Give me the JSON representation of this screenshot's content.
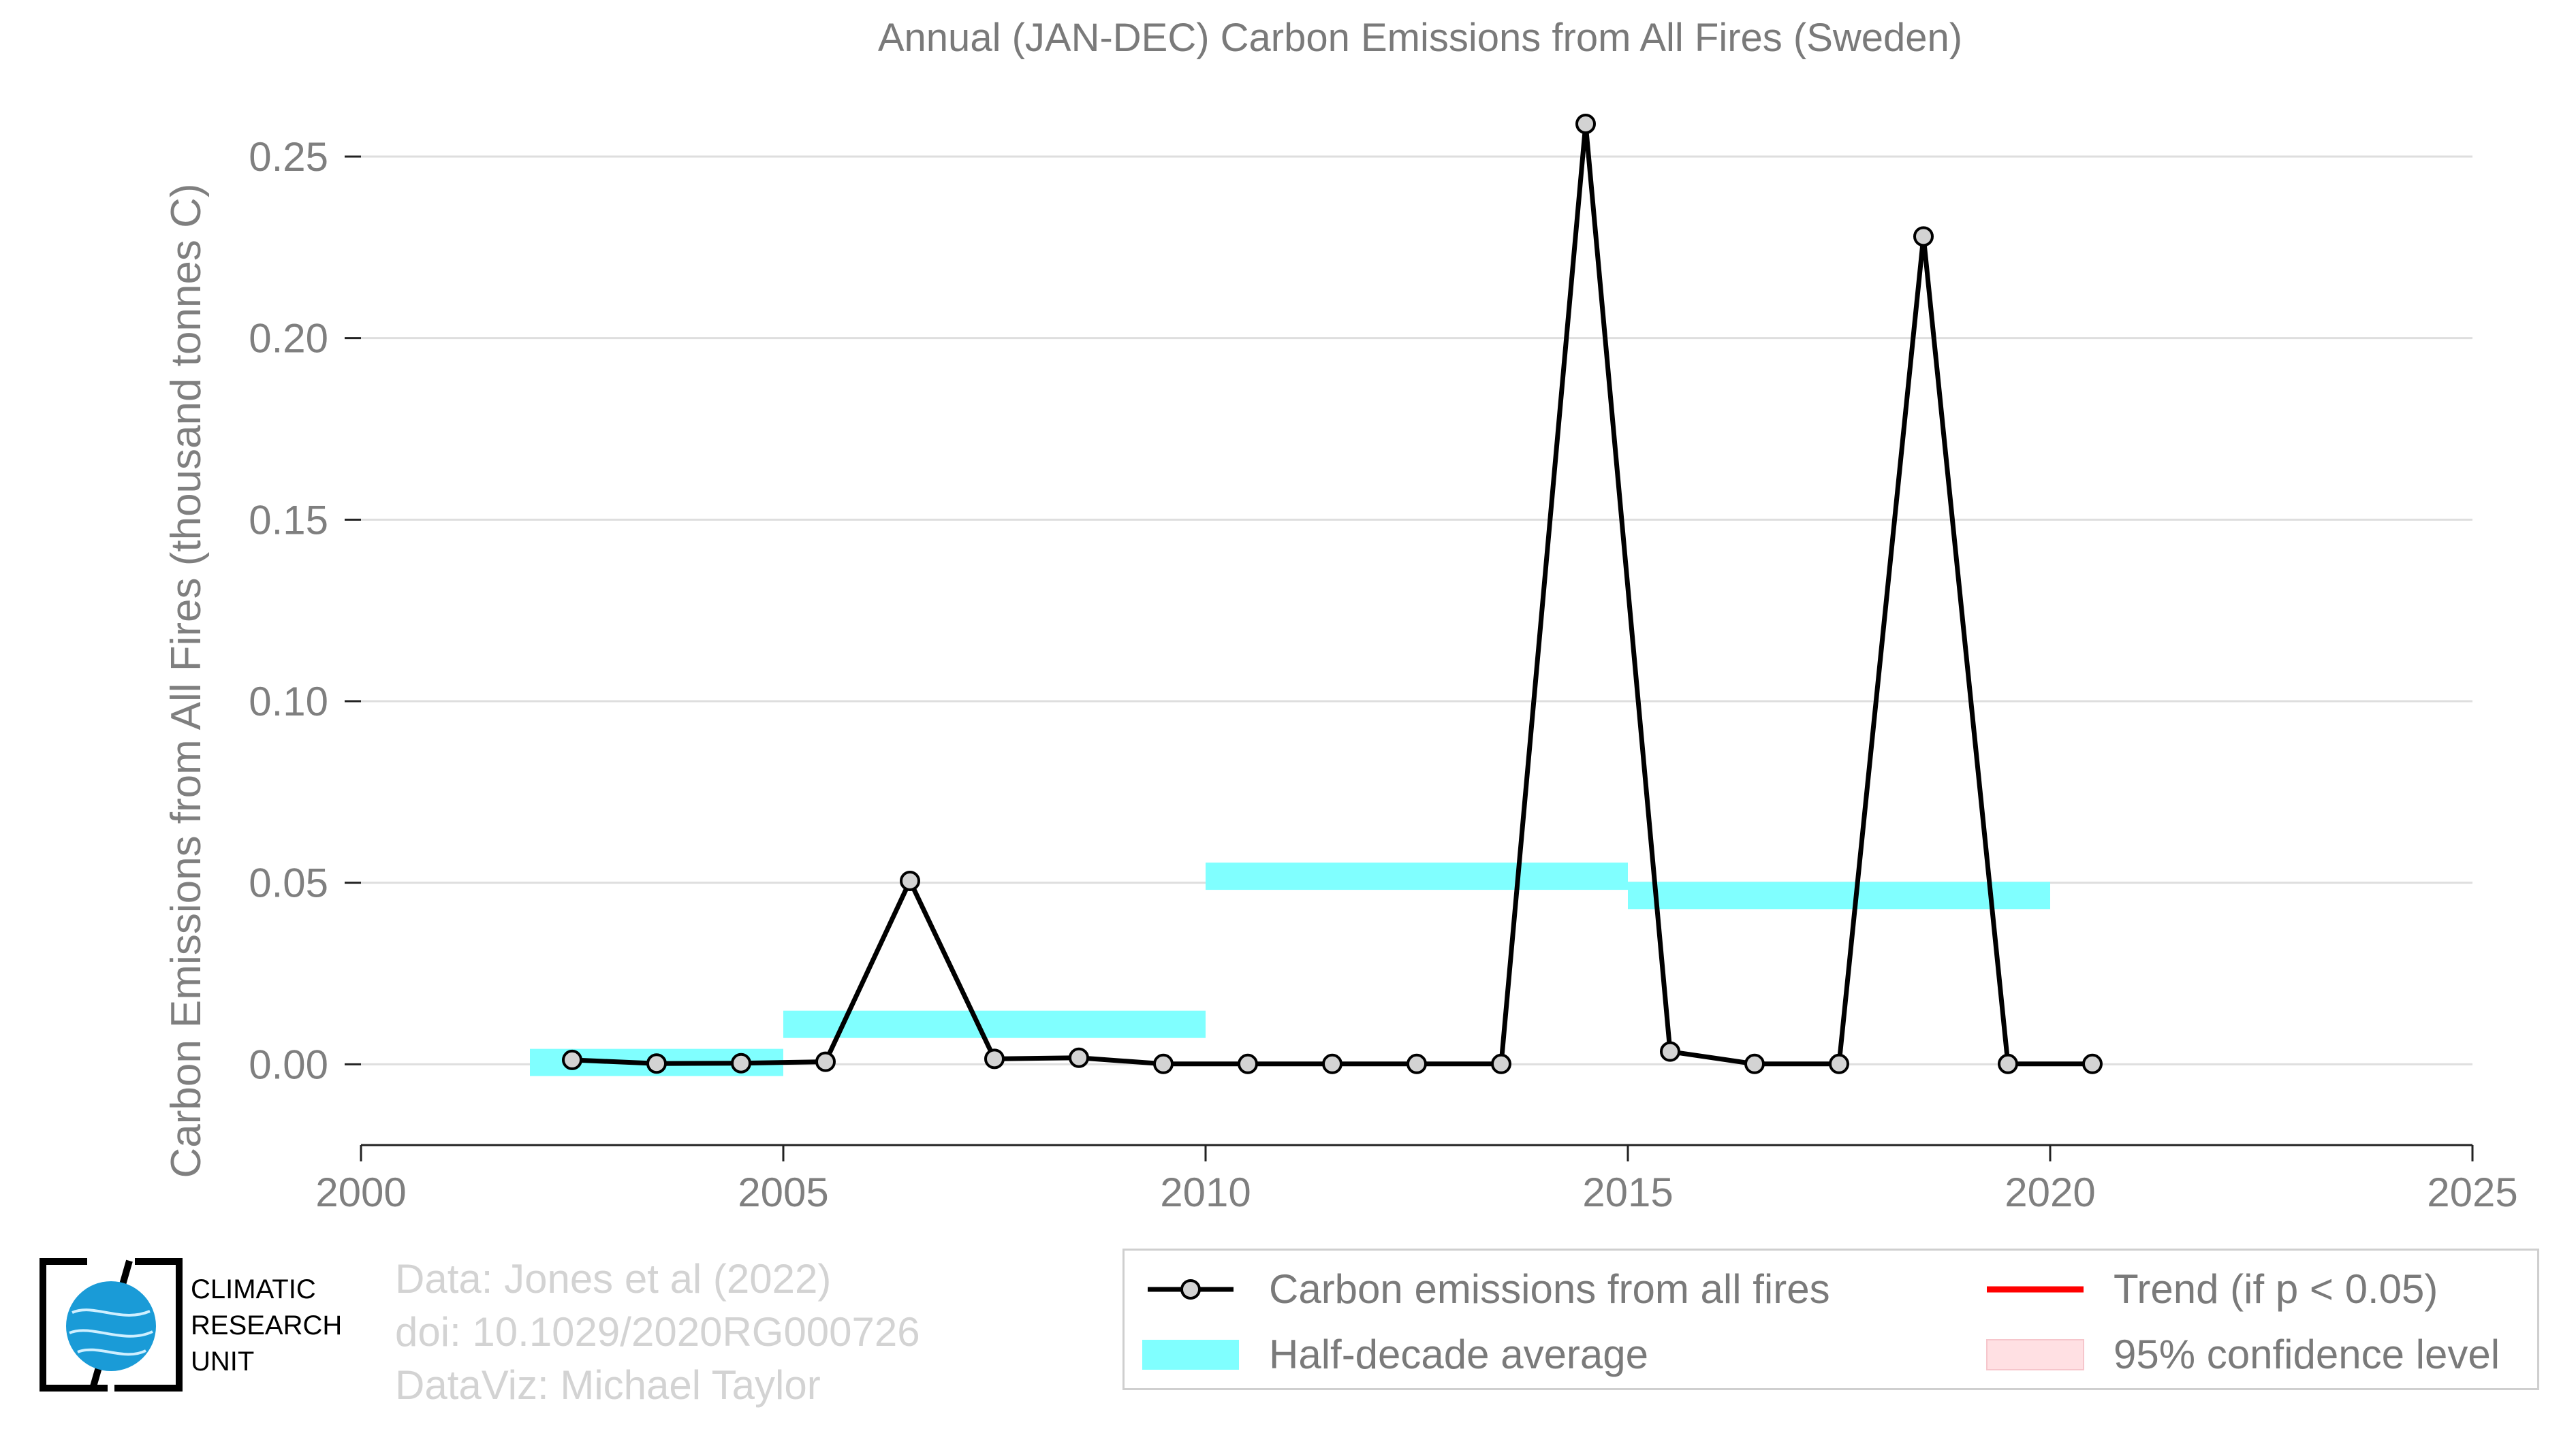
{
  "chart_data": {
    "type": "line",
    "title": "Annual (JAN-DEC) Carbon Emissions from All Fires (Sweden)",
    "xlabel": "",
    "ylabel": "Carbon Emissions from All Fires (thousand tonnes C)",
    "xlim": [
      2000,
      2025
    ],
    "ylim": [
      -0.02,
      0.265
    ],
    "x_ticks": [
      "2000",
      "2005",
      "2010",
      "2015",
      "2020",
      "2025"
    ],
    "y_ticks": [
      "0.00",
      "0.05",
      "0.10",
      "0.15",
      "0.20",
      "0.25"
    ],
    "grid": "horizontal",
    "series": [
      {
        "name": "Carbon emissions from all fires",
        "color": "#000000",
        "marker_fill": "#d3d3d3",
        "x": [
          2002.5,
          2003.5,
          2004.5,
          2005.5,
          2006.5,
          2007.5,
          2008.5,
          2009.5,
          2010.5,
          2011.5,
          2012.5,
          2013.5,
          2014.5,
          2015.5,
          2016.5,
          2017.5,
          2018.5,
          2019.5,
          2020.5
        ],
        "y": [
          0.0012,
          0.0002,
          0.0003,
          0.0007,
          0.0505,
          0.0015,
          0.0018,
          0.0001,
          0.0001,
          0.0001,
          0.0001,
          0.0001,
          0.259,
          0.0035,
          0.0001,
          0.0001,
          0.228,
          0.0001,
          0.0001
        ]
      }
    ],
    "half_decade_average": {
      "name": "Half-decade average",
      "color": "#80ffff",
      "bands": [
        {
          "x": [
            2002,
            2005
          ],
          "y": 0.0005
        },
        {
          "x": [
            2005,
            2010
          ],
          "y": 0.011
        },
        {
          "x": [
            2010,
            2015
          ],
          "y": 0.0518
        },
        {
          "x": [
            2015,
            2020
          ],
          "y": 0.0465
        }
      ]
    },
    "legend": {
      "placement": "bottom-right",
      "entries": [
        {
          "label": "Carbon emissions from all fires",
          "kind": "line-marker",
          "color": "#000000"
        },
        {
          "label": "Trend (if p < 0.05)",
          "kind": "line",
          "color": "#ff0000"
        },
        {
          "label": "Half-decade average",
          "kind": "band",
          "color": "#80ffff"
        },
        {
          "label": "95% confidence level",
          "kind": "band",
          "color": "#ffe0e3"
        }
      ]
    }
  },
  "credits": {
    "line1": "Data: Jones et al (2022)",
    "line2": "doi: 10.1029/2020RG000726",
    "line3": "DataViz: Michael Taylor"
  },
  "logo": {
    "line1": "CLIMATIC",
    "line2": "RESEARCH",
    "line3": "UNIT"
  }
}
